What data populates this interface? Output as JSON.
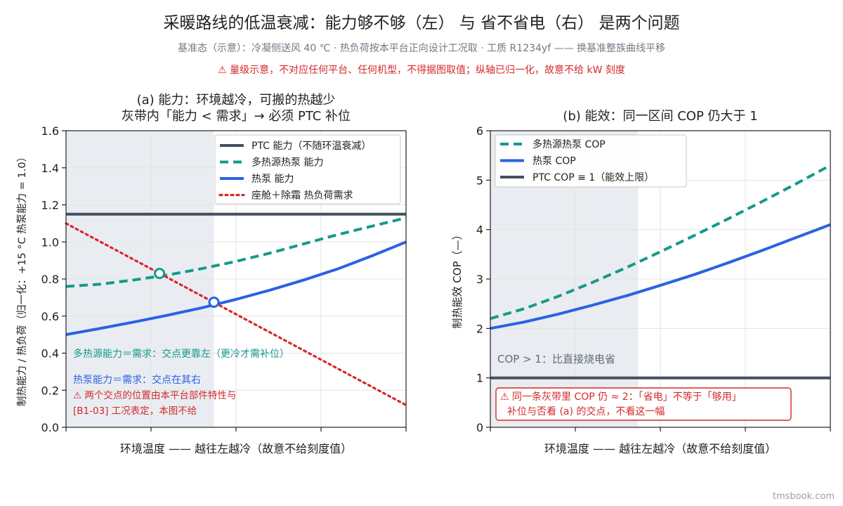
{
  "header": {
    "title": "采暖路线的低温衰减：能力够不够（左） 与 省不省电（右） 是两个问题",
    "subtitle": "基准态（示意）：冷凝侧送风 40 ℃ · 热负荷按本平台正向设计工况取 · 工质 R1234yf —— 换基准整族曲线平移",
    "warning": "⚠ 量级示意，不对应任何平台、任何机型，不得据图取值；纵轴已归一化，故意不给 kW 刻度"
  },
  "watermark": "tmsbook.com",
  "colors": {
    "ptc": "#444f60",
    "multi": "#16998a",
    "hp": "#2a62e2",
    "demand": "#d42a2a",
    "shade": "#e9edf1",
    "grid": "#e3e3e3",
    "axis": "#222222"
  },
  "chart_data": [
    {
      "type": "line",
      "title_lines": [
        "(a) 能力：环境越冷，可搬的热越少",
        "灰带内「能力 < 需求」→ 必须 PTC 补位"
      ],
      "xlabel": "环境温度 —— 越往左越冷（故意不给刻度值）",
      "ylabel": "制热能力 / 热负荷（归一化：+15 °C 热泵能力 = 1.0）",
      "xlim": [
        0,
        1
      ],
      "ylim": [
        0,
        1.6
      ],
      "yticks": [
        "0.0",
        "0.2",
        "0.4",
        "0.6",
        "0.8",
        "1.0",
        "1.2",
        "1.4",
        "1.6"
      ],
      "xticks": [
        0,
        0.25,
        0.5,
        0.75,
        1.0
      ],
      "shaded_x": [
        0,
        0.435
      ],
      "grid": true,
      "legend_position": "top-right",
      "legend": [
        "PTC 能力（不随环温衰减）",
        "多热源热泵 能力",
        "热泵 能力",
        "座舱＋除霜 热负荷需求"
      ],
      "series": [
        {
          "name": "PTC 能力（不随环温衰减）",
          "style": "solid-dark",
          "x": [
            0,
            1
          ],
          "y": [
            1.15,
            1.15
          ]
        },
        {
          "name": "多热源热泵 能力",
          "style": "dashed-teal",
          "x": [
            0,
            0.1,
            0.2,
            0.3,
            0.4,
            0.5,
            0.6,
            0.7,
            0.8,
            0.9,
            1.0
          ],
          "y": [
            0.76,
            0.772,
            0.795,
            0.822,
            0.856,
            0.895,
            0.94,
            0.99,
            1.04,
            1.085,
            1.13
          ]
        },
        {
          "name": "热泵 能力",
          "style": "solid-blue",
          "x": [
            0,
            0.1,
            0.2,
            0.3,
            0.4,
            0.5,
            0.6,
            0.7,
            0.8,
            0.9,
            1.0
          ],
          "y": [
            0.5,
            0.533,
            0.568,
            0.605,
            0.645,
            0.69,
            0.74,
            0.795,
            0.855,
            0.925,
            1.0
          ]
        },
        {
          "name": "座舱＋除霜 热负荷需求",
          "style": "dotted-red",
          "x": [
            0,
            1
          ],
          "y": [
            1.1,
            0.12
          ]
        }
      ],
      "markers": [
        {
          "x": 0.275,
          "y": 0.83,
          "series": "多热源热泵 能力"
        },
        {
          "x": 0.435,
          "y": 0.675,
          "series": "热泵 能力"
        }
      ],
      "annotations": {
        "multi_note": "多热源能力＝需求：交点更靠左（更冷才需补位）",
        "hp_note": "热泵能力＝需求：交点在其右",
        "warn_line1": "⚠ 两个交点的位置由本平台部件特性与",
        "warn_line2": "[B1-03] 工况表定，本图不给"
      }
    },
    {
      "type": "line",
      "title_lines": [
        "(b) 能效：同一区间 COP 仍大于 1"
      ],
      "xlabel": "环境温度 —— 越往左越冷（故意不给刻度值）",
      "ylabel": "制热能效 COP（—）",
      "xlim": [
        0,
        1
      ],
      "ylim": [
        0,
        6
      ],
      "yticks": [
        "0",
        "1",
        "2",
        "3",
        "4",
        "5",
        "6"
      ],
      "xticks": [
        0,
        0.25,
        0.5,
        0.75,
        1.0
      ],
      "shaded_x": [
        0,
        0.435
      ],
      "grid": true,
      "legend_position": "top-left",
      "legend": [
        "多热源热泵 COP",
        "热泵 COP",
        "PTC COP ≡ 1（能效上限）"
      ],
      "series": [
        {
          "name": "多热源热泵 COP",
          "style": "dashed-teal",
          "x": [
            0,
            0.1,
            0.2,
            0.3,
            0.4,
            0.5,
            0.6,
            0.7,
            0.8,
            0.9,
            1.0
          ],
          "y": [
            2.2,
            2.4,
            2.65,
            2.93,
            3.23,
            3.55,
            3.88,
            4.22,
            4.57,
            4.93,
            5.3
          ]
        },
        {
          "name": "热泵 COP",
          "style": "solid-blue",
          "x": [
            0,
            0.1,
            0.2,
            0.3,
            0.4,
            0.5,
            0.6,
            0.7,
            0.8,
            0.9,
            1.0
          ],
          "y": [
            2.0,
            2.13,
            2.29,
            2.47,
            2.66,
            2.87,
            3.09,
            3.33,
            3.58,
            3.84,
            4.1
          ]
        },
        {
          "name": "PTC COP ≡ 1（能效上限）",
          "style": "solid-dark",
          "x": [
            0,
            1
          ],
          "y": [
            1,
            1
          ]
        }
      ],
      "annotations": {
        "cop_note": "COP > 1：比直接烧电省",
        "warn_line1": "⚠ 同一条灰带里 COP 仍 ≈ 2：「省电」不等于「够用」",
        "warn_line2": "补位与否看 (a) 的交点，不看这一幅"
      }
    }
  ]
}
